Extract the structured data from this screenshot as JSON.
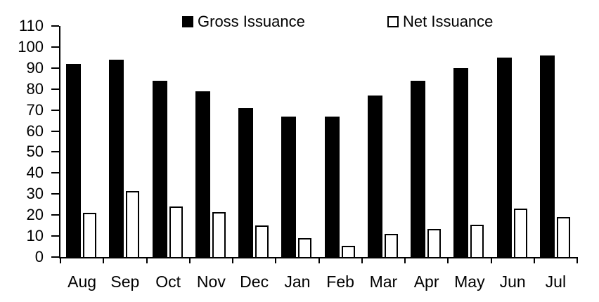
{
  "chart_data": {
    "type": "bar",
    "title": "",
    "xlabel": "",
    "ylabel": "",
    "categories": [
      "Aug",
      "Sep",
      "Oct",
      "Nov",
      "Dec",
      "Jan",
      "Feb",
      "Mar",
      "Apr",
      "May",
      "Jun",
      "Jul"
    ],
    "series": [
      {
        "name": "Gross Issuance",
        "swatch": "solid",
        "color": "#000000",
        "values": [
          92,
          94,
          84,
          79,
          71,
          67,
          67,
          77,
          84,
          90,
          95,
          96
        ]
      },
      {
        "name": "Net Issuance",
        "swatch": "hollow",
        "color": "#ffffff",
        "border_color": "#000000",
        "values": [
          21,
          31.5,
          24,
          21.5,
          15,
          9,
          5.5,
          11,
          13.5,
          15.5,
          23,
          19
        ]
      }
    ],
    "ylim": [
      0,
      110
    ],
    "ytick_step": 10,
    "yticks": [
      0,
      10,
      20,
      30,
      40,
      50,
      60,
      70,
      80,
      90,
      100,
      110
    ],
    "grid": false,
    "legend_position": "top",
    "axis_color": "#000000",
    "background": "#ffffff"
  }
}
